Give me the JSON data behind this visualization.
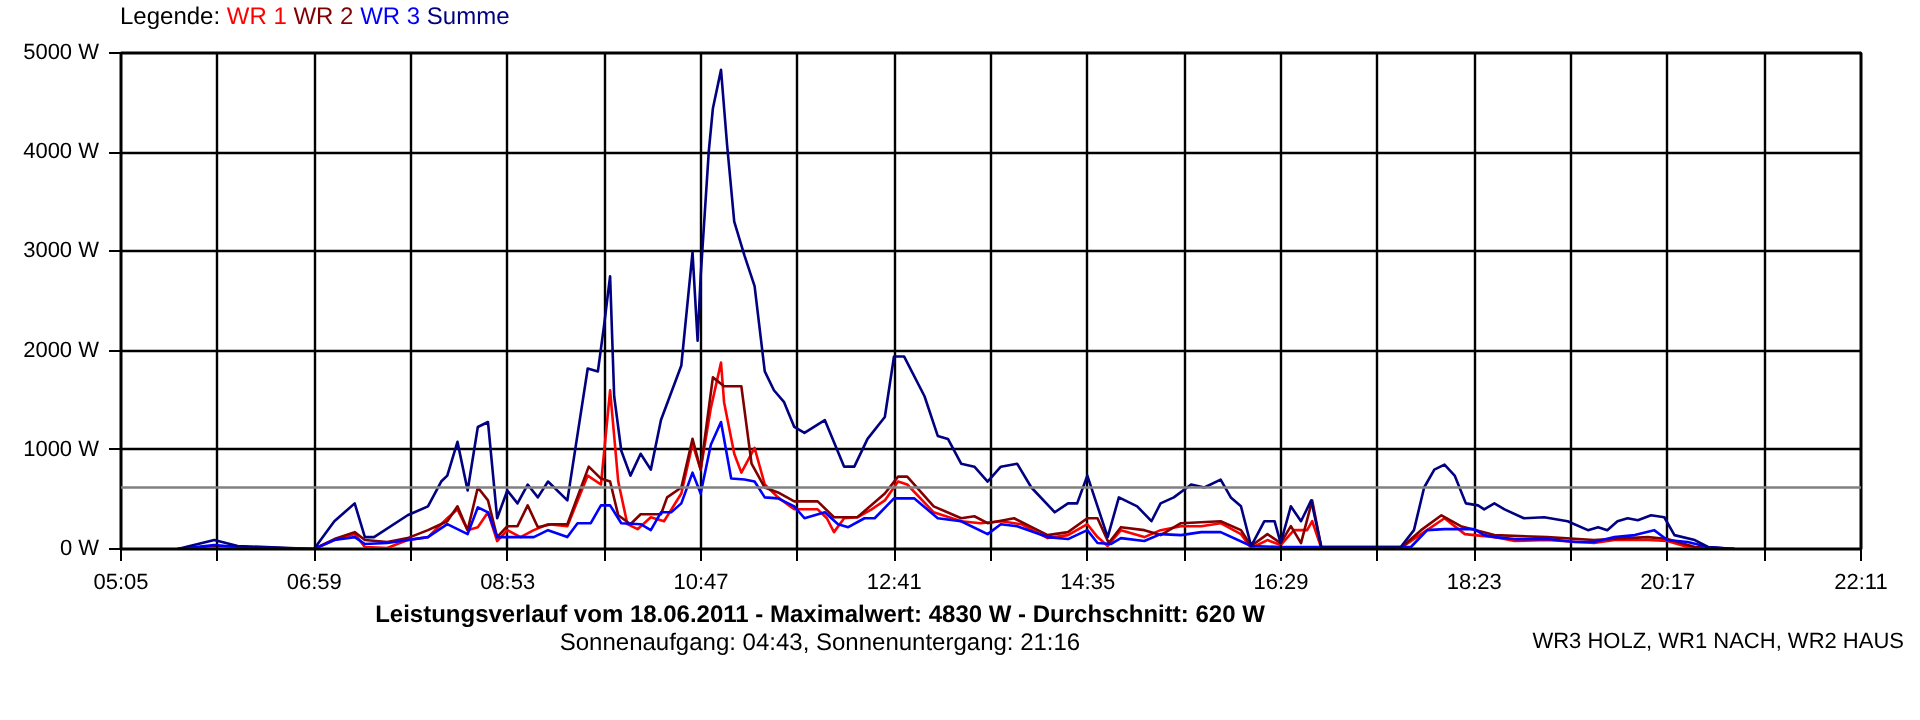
{
  "chart_data": {
    "type": "line",
    "title": "Leistungsverlauf vom 18.06.2011 - Maximalwert: 4830 W - Durchschnitt: 620 W",
    "subtitle": "Sonnenaufgang: 04:43, Sonnenuntergang: 21:16",
    "annotations": [
      "WR3 HOLZ, WR1 NACH, WR2 HAUS"
    ],
    "legend_title": "Legende:",
    "legend": "top left",
    "grid": true,
    "xlim": [
      5.0833,
      22.1833
    ],
    "xticks": [
      {
        "value": 5.0833,
        "label": "05:05"
      },
      {
        "value": 6.0333,
        "label": null
      },
      {
        "value": 6.9833,
        "label": "06:59"
      },
      {
        "value": 7.9333,
        "label": null
      },
      {
        "value": 8.8833,
        "label": "08:53"
      },
      {
        "value": 9.8333,
        "label": null
      },
      {
        "value": 10.7833,
        "label": "10:47"
      },
      {
        "value": 11.7333,
        "label": null
      },
      {
        "value": 12.6833,
        "label": "12:41"
      },
      {
        "value": 13.6333,
        "label": null
      },
      {
        "value": 14.5833,
        "label": "14:35"
      },
      {
        "value": 15.5333,
        "label": null
      },
      {
        "value": 16.4833,
        "label": "16:29"
      },
      {
        "value": 17.4333,
        "label": null
      },
      {
        "value": 18.3833,
        "label": "18:23"
      },
      {
        "value": 19.3333,
        "label": null
      },
      {
        "value": 20.2833,
        "label": "20:17"
      },
      {
        "value": 21.2333,
        "label": null
      },
      {
        "value": 22.1833,
        "label": "22:11"
      }
    ],
    "ylim": [
      0,
      5000
    ],
    "yticks": [
      {
        "value": 0,
        "label": "0 W"
      },
      {
        "value": 1000,
        "label": "1000 W"
      },
      {
        "value": 2000,
        "label": "2000 W"
      },
      {
        "value": 3000,
        "label": "3000 W"
      },
      {
        "value": 4000,
        "label": "4000 W"
      },
      {
        "value": 5000,
        "label": "5000 W"
      }
    ],
    "ref_lines": [
      {
        "axis": "y",
        "value": 620,
        "color": "#808080"
      }
    ],
    "series": [
      {
        "name": "WR 1",
        "color": "#ff0000",
        "x": [
          6.98,
          7.18,
          7.38,
          7.48,
          7.7,
          7.9,
          8.1,
          8.29,
          8.39,
          8.49,
          8.59,
          8.69,
          8.78,
          8.88,
          9.01,
          9.14,
          9.28,
          9.47,
          9.67,
          9.8,
          9.89,
          9.97,
          10.06,
          10.16,
          10.29,
          10.42,
          10.59,
          10.7,
          10.78,
          10.88,
          10.98,
          11.01,
          11.11,
          11.18,
          11.31,
          11.41,
          11.54,
          11.7,
          11.93,
          12.02,
          12.09,
          12.19,
          12.32,
          12.46,
          12.59,
          12.72,
          12.81,
          13.07,
          13.34,
          13.53,
          13.73,
          13.93,
          14.19,
          14.39,
          14.58,
          14.68,
          14.78,
          14.91,
          15.14,
          15.3,
          15.5,
          15.7,
          15.89,
          16.09,
          16.19,
          16.35,
          16.48,
          16.61,
          16.74,
          16.79,
          16.88,
          17.66,
          17.86,
          18.09,
          18.29,
          18.58,
          18.78,
          19.1,
          19.56,
          19.76,
          20.09,
          20.28,
          20.48,
          20.61,
          20.94
        ],
        "values": [
          0,
          90,
          150,
          20,
          10,
          90,
          120,
          310,
          400,
          190,
          220,
          370,
          80,
          190,
          120,
          190,
          250,
          230,
          740,
          650,
          1600,
          680,
          250,
          200,
          320,
          280,
          560,
          1060,
          800,
          1420,
          1880,
          1480,
          960,
          770,
          1020,
          650,
          520,
          400,
          400,
          310,
          170,
          310,
          320,
          400,
          490,
          680,
          650,
          370,
          280,
          260,
          280,
          250,
          110,
          140,
          250,
          120,
          30,
          190,
          120,
          190,
          230,
          230,
          260,
          150,
          10,
          90,
          40,
          190,
          190,
          280,
          10,
          10,
          150,
          310,
          150,
          120,
          80,
          90,
          60,
          90,
          90,
          80,
          20,
          10,
          0
        ]
      },
      {
        "name": "WR 2",
        "color": "#800000",
        "x": [
          5.64,
          6.0,
          6.98,
          7.18,
          7.38,
          7.48,
          7.7,
          7.9,
          8.1,
          8.29,
          8.39,
          8.49,
          8.59,
          8.69,
          8.78,
          8.88,
          8.98,
          9.08,
          9.18,
          9.31,
          9.47,
          9.68,
          9.8,
          9.89,
          9.97,
          10.09,
          10.19,
          10.39,
          10.45,
          10.59,
          10.7,
          10.78,
          10.9,
          11.01,
          11.18,
          11.28,
          11.41,
          11.54,
          11.7,
          11.93,
          12.09,
          12.32,
          12.59,
          12.72,
          12.81,
          13.07,
          13.34,
          13.47,
          13.6,
          13.86,
          14.19,
          14.39,
          14.58,
          14.68,
          14.79,
          14.91,
          15.14,
          15.3,
          15.5,
          15.89,
          16.09,
          16.19,
          16.35,
          16.48,
          16.58,
          16.68,
          16.79,
          16.88,
          17.66,
          17.86,
          18.06,
          18.25,
          18.58,
          19.1,
          19.56,
          19.89,
          20.09,
          20.28,
          20.55,
          20.94
        ],
        "values": [
          0,
          30,
          0,
          100,
          170,
          90,
          70,
          110,
          190,
          280,
          430,
          190,
          620,
          490,
          120,
          230,
          230,
          440,
          220,
          250,
          250,
          830,
          710,
          680,
          340,
          250,
          350,
          350,
          520,
          620,
          1110,
          800,
          1730,
          1640,
          1640,
          860,
          620,
          570,
          480,
          480,
          320,
          320,
          560,
          730,
          730,
          430,
          310,
          330,
          260,
          310,
          140,
          170,
          310,
          310,
          60,
          220,
          190,
          140,
          260,
          280,
          190,
          30,
          150,
          60,
          230,
          60,
          490,
          10,
          10,
          190,
          340,
          230,
          140,
          120,
          90,
          110,
          120,
          100,
          20,
          0
        ]
      },
      {
        "name": "WR 3",
        "color": "#0000ff",
        "x": [
          5.64,
          6.0,
          6.23,
          6.98,
          7.18,
          7.38,
          7.48,
          7.7,
          8.1,
          8.29,
          8.49,
          8.59,
          8.69,
          8.78,
          8.95,
          9.14,
          9.28,
          9.47,
          9.57,
          9.7,
          9.8,
          9.89,
          10.0,
          10.19,
          10.29,
          10.39,
          10.49,
          10.59,
          10.7,
          10.78,
          10.88,
          10.98,
          11.08,
          11.21,
          11.31,
          11.41,
          11.54,
          11.7,
          11.8,
          12.0,
          12.13,
          12.23,
          12.39,
          12.49,
          12.68,
          12.88,
          13.11,
          13.34,
          13.6,
          13.73,
          13.89,
          14.19,
          14.39,
          14.58,
          14.68,
          14.81,
          14.91,
          15.14,
          15.3,
          15.5,
          15.7,
          15.89,
          16.19,
          16.48,
          16.88,
          17.66,
          17.76,
          17.92,
          18.09,
          18.38,
          18.48,
          18.58,
          18.78,
          19.1,
          19.37,
          19.56,
          19.76,
          19.96,
          20.15,
          20.28,
          20.48,
          20.68,
          20.94
        ],
        "values": [
          0,
          40,
          20,
          0,
          90,
          120,
          50,
          60,
          120,
          250,
          150,
          420,
          370,
          120,
          120,
          120,
          190,
          120,
          260,
          260,
          440,
          440,
          260,
          250,
          190,
          370,
          370,
          460,
          770,
          560,
          1050,
          1280,
          710,
          700,
          680,
          520,
          510,
          430,
          310,
          370,
          250,
          220,
          310,
          310,
          510,
          510,
          310,
          280,
          150,
          250,
          230,
          120,
          100,
          190,
          60,
          50,
          110,
          80,
          150,
          140,
          170,
          170,
          30,
          20,
          20,
          20,
          20,
          190,
          200,
          200,
          140,
          120,
          100,
          100,
          70,
          70,
          120,
          140,
          190,
          90,
          70,
          20,
          0
        ]
      },
      {
        "name": "Summe",
        "color": "#000080",
        "x": [
          5.64,
          6.0,
          6.23,
          6.98,
          7.18,
          7.38,
          7.48,
          7.57,
          7.9,
          8.1,
          8.23,
          8.29,
          8.39,
          8.49,
          8.59,
          8.69,
          8.78,
          8.88,
          8.98,
          9.08,
          9.18,
          9.28,
          9.47,
          9.67,
          9.77,
          9.83,
          9.89,
          9.93,
          10.0,
          10.09,
          10.19,
          10.29,
          10.39,
          10.59,
          10.7,
          10.75,
          10.78,
          10.86,
          10.9,
          10.98,
          11.04,
          11.11,
          11.21,
          11.31,
          11.41,
          11.5,
          11.6,
          11.7,
          11.8,
          12.0,
          12.19,
          12.29,
          12.42,
          12.59,
          12.68,
          12.78,
          12.98,
          13.11,
          13.21,
          13.34,
          13.47,
          13.6,
          13.73,
          13.89,
          14.03,
          14.26,
          14.39,
          14.48,
          14.58,
          14.68,
          14.78,
          14.89,
          15.07,
          15.21,
          15.3,
          15.43,
          15.6,
          15.73,
          15.89,
          15.99,
          16.09,
          16.19,
          16.32,
          16.42,
          16.48,
          16.58,
          16.68,
          16.78,
          16.88,
          17.01,
          17.2,
          17.66,
          17.79,
          17.89,
          17.99,
          18.09,
          18.19,
          18.3,
          18.42,
          18.48,
          18.58,
          18.68,
          18.87,
          19.07,
          19.3,
          19.5,
          19.6,
          19.69,
          19.79,
          19.89,
          19.99,
          20.12,
          20.25,
          20.35,
          20.55,
          20.68,
          20.94
        ],
        "values": [
          0,
          90,
          30,
          0,
          280,
          460,
          120,
          120,
          340,
          430,
          680,
          740,
          1080,
          590,
          1230,
          1280,
          310,
          590,
          460,
          650,
          520,
          680,
          490,
          1820,
          1790,
          2250,
          2750,
          1540,
          990,
          740,
          960,
          800,
          1300,
          1850,
          2990,
          2100,
          2750,
          4010,
          4440,
          4830,
          4070,
          3300,
          2960,
          2650,
          1790,
          1600,
          1480,
          1230,
          1170,
          1300,
          830,
          830,
          1110,
          1330,
          1940,
          1940,
          1540,
          1140,
          1110,
          860,
          830,
          680,
          830,
          860,
          620,
          370,
          460,
          460,
          740,
          430,
          120,
          520,
          430,
          280,
          460,
          520,
          650,
          620,
          700,
          520,
          430,
          30,
          280,
          280,
          60,
          430,
          280,
          490,
          20,
          20,
          20,
          20,
          190,
          620,
          800,
          850,
          740,
          460,
          440,
          400,
          460,
          400,
          310,
          320,
          280,
          190,
          220,
          190,
          280,
          310,
          290,
          340,
          320,
          140,
          90,
          20,
          0
        ]
      }
    ]
  }
}
